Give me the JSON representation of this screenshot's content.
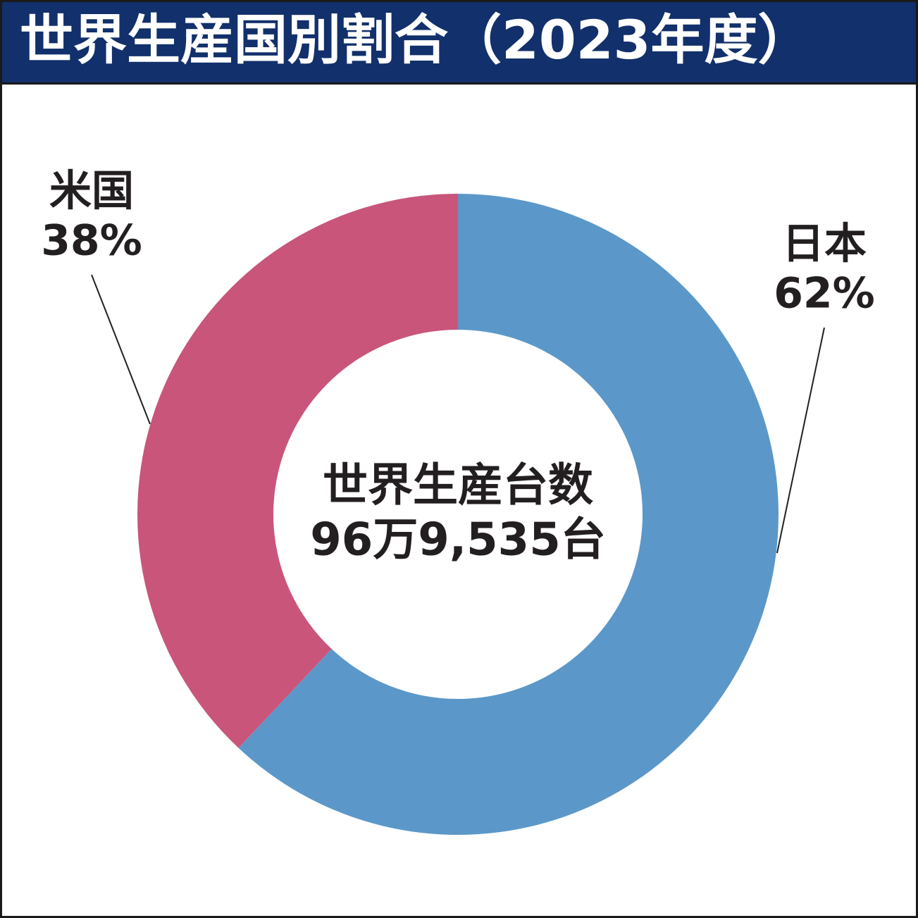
{
  "chart_data": {
    "type": "donut",
    "title": "世界生産国別割合（2023年度）",
    "categories": [
      "日本",
      "米国"
    ],
    "values": [
      62,
      38
    ],
    "value_labels": [
      "62%",
      "38%"
    ],
    "colors": [
      "#5b98c9",
      "#c9557b"
    ],
    "center_label": "世界生産台数",
    "center_value": "96万9,535台"
  }
}
